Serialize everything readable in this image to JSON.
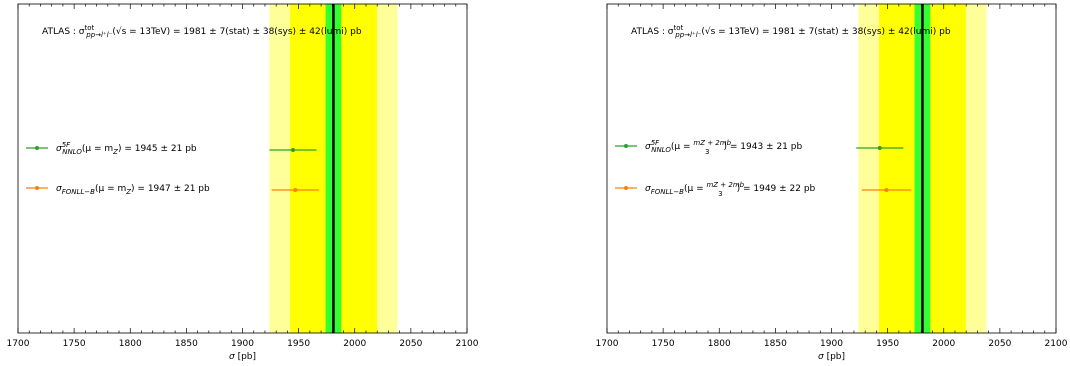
{
  "chart_data": [
    {
      "type": "scatter",
      "xlabel": "σ [pb]",
      "xlim": [
        1700,
        2100
      ],
      "x_ticks": [
        "1700",
        "1750",
        "1800",
        "1850",
        "1900",
        "1950",
        "2000",
        "2050",
        "2100"
      ],
      "measurement": {
        "value": 1981,
        "stat": 7,
        "sys": 38,
        "lumi": 42,
        "label_prefix": "ATLAS : σ",
        "label_sup": "tot",
        "label_sub": "pp→l⁺l⁻",
        "label_suffix": "(√s = 13TeV) = 1981 ± 7(stat) ± 38(sys) ± 42(lumi) pb"
      },
      "bands": {
        "stat_color": "#33ff33",
        "stat_sys_color": "#ffff00",
        "total_color": "#ffff99",
        "central_color": "#000000"
      },
      "grid": false,
      "legend_position": "center-left",
      "series": [
        {
          "x": 1945,
          "err": 21,
          "color": "#2ca02c",
          "sym": "σ",
          "sup": "5F",
          "sub": "NNLO",
          "arg": "(μ = m",
          "arg_sub": "Z",
          "arg_tail": ") = 1945 ± 21 pb"
        },
        {
          "x": 1947,
          "err": 21,
          "color": "#ff7f0e",
          "sym": "σ",
          "sup": "",
          "sub": "FONLL−B",
          "arg": "(μ = m",
          "arg_sub": "Z",
          "arg_tail": ") = 1947 ± 21 pb"
        }
      ]
    },
    {
      "type": "scatter",
      "xlabel": "σ [pb]",
      "xlim": [
        1700,
        2100
      ],
      "x_ticks": [
        "1700",
        "1750",
        "1800",
        "1850",
        "1900",
        "1950",
        "2000",
        "2050",
        "2100"
      ],
      "measurement": {
        "value": 1981,
        "stat": 7,
        "sys": 38,
        "lumi": 42,
        "label_prefix": "ATLAS : σ",
        "label_sup": "tot",
        "label_sub": "pp→l⁺l⁻",
        "label_suffix": "(√s = 13TeV) = 1981 ± 7(stat) ± 38(sys) ± 42(lumi) pb"
      },
      "bands": {
        "stat_color": "#33ff33",
        "stat_sys_color": "#ffff00",
        "total_color": "#ffff99",
        "central_color": "#000000"
      },
      "grid": false,
      "legend_position": "center-left",
      "series": [
        {
          "x": 1943,
          "err": 21,
          "color": "#2ca02c",
          "sym": "σ",
          "sup": "5F",
          "sub": "NNLO",
          "arg": "(μ = ",
          "frac_num": "m_Z + 2m_b",
          "frac_den": "3",
          "arg_tail": ") = 1943 ± 21 pb"
        },
        {
          "x": 1949,
          "err": 22,
          "color": "#ff7f0e",
          "sym": "σ",
          "sup": "",
          "sub": "FONLL−B",
          "arg": "(μ = ",
          "frac_num": "m_Z + 2m_b",
          "frac_den": "3",
          "arg_tail": ") = 1949 ± 22 pb"
        }
      ]
    }
  ]
}
